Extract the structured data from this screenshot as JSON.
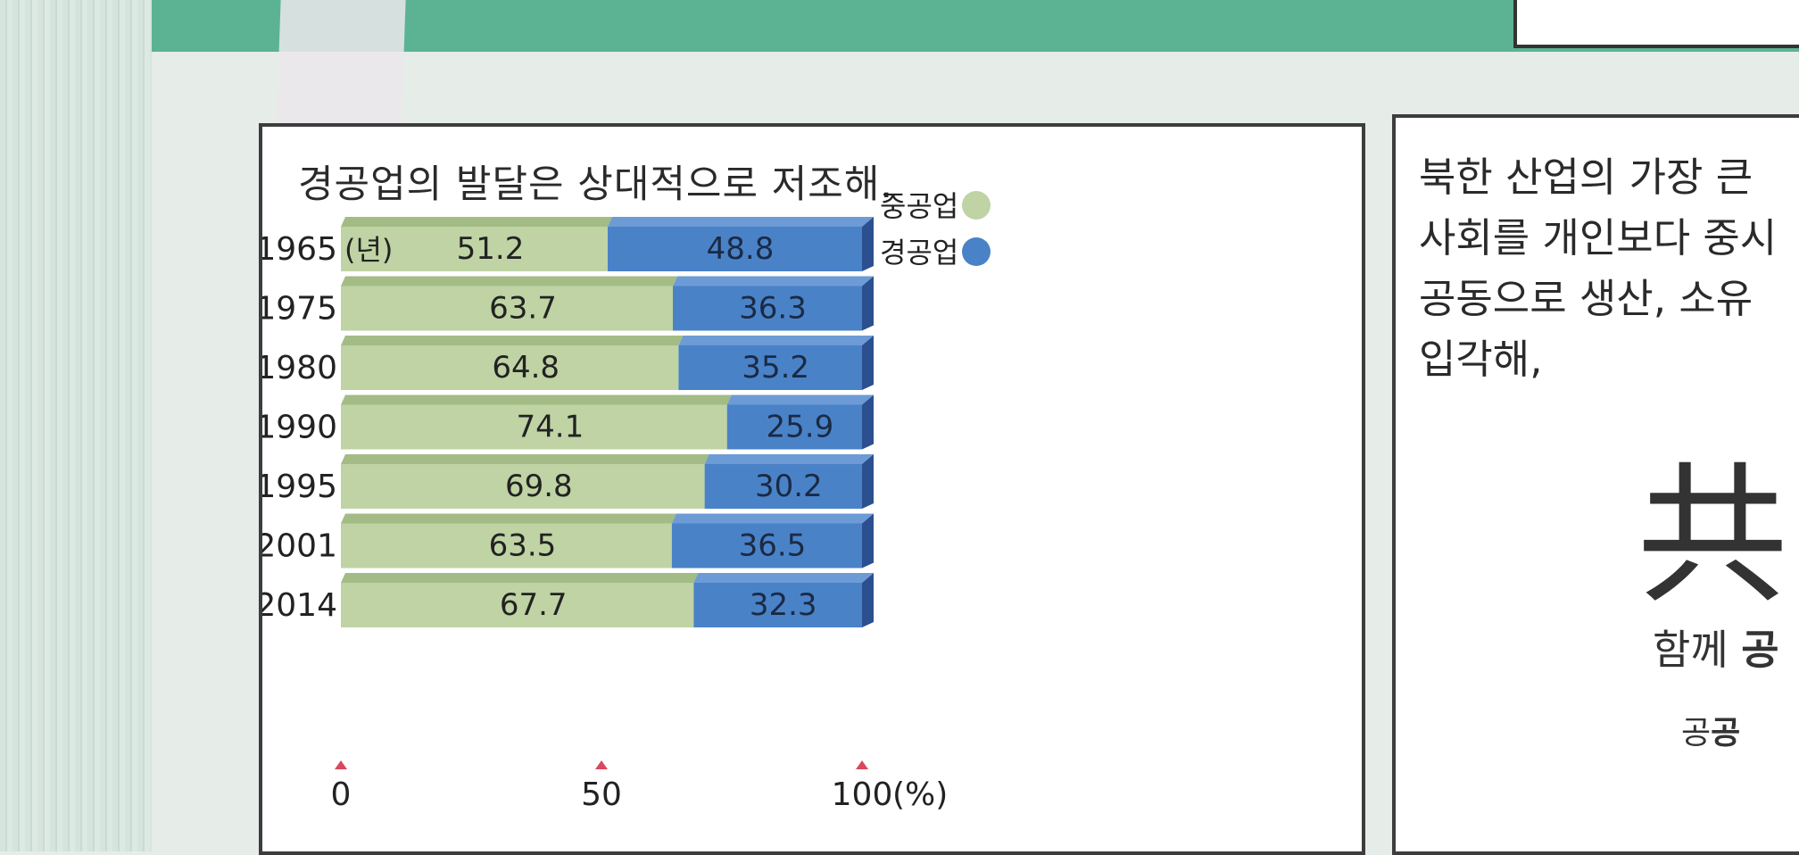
{
  "chart_data": {
    "type": "bar",
    "stacked": true,
    "orientation": "horizontal",
    "title": "경공업의 발달은 상대적으로 저조해.",
    "categories": [
      "1965",
      "1975",
      "1980",
      "1990",
      "1995",
      "2001",
      "2014"
    ],
    "category_unit": "(년)",
    "series": [
      {
        "name": "중공업",
        "values": [
          51.2,
          63.7,
          64.8,
          74.1,
          69.8,
          63.5,
          67.7
        ]
      },
      {
        "name": "경공업",
        "values": [
          48.8,
          36.3,
          35.2,
          25.9,
          30.2,
          36.5,
          32.3
        ]
      }
    ],
    "value_labels": [
      [
        "51.2",
        "63.7",
        "64.8",
        "74.1",
        "69.8",
        "63.5",
        "67.7"
      ],
      [
        "48.8",
        "36.3",
        "35.2",
        "25.9",
        "30.2",
        "36.5",
        "32.3"
      ]
    ],
    "xlim": [
      0,
      100
    ],
    "xticks": [
      "0",
      "50",
      "100"
    ],
    "x_unit": "(%)",
    "legend_position": "top-right",
    "colors": {
      "heavy": "#bfd3a4",
      "heavy_edge": "#a3bc86",
      "light": "#4a82c8",
      "light_side": "#2c4f8f",
      "tick_marker": "#d9485f"
    }
  },
  "right_panel": {
    "lines": [
      "북한 산업의 가장 큰",
      "사회를 개인보다 중시",
      "공동으로 생산, 소유",
      "입각해,"
    ],
    "hanja": "共",
    "caption1_plain": "함께 ",
    "caption1_bold": "공",
    "caption2_plain": "공",
    "caption2_bold": "공"
  }
}
